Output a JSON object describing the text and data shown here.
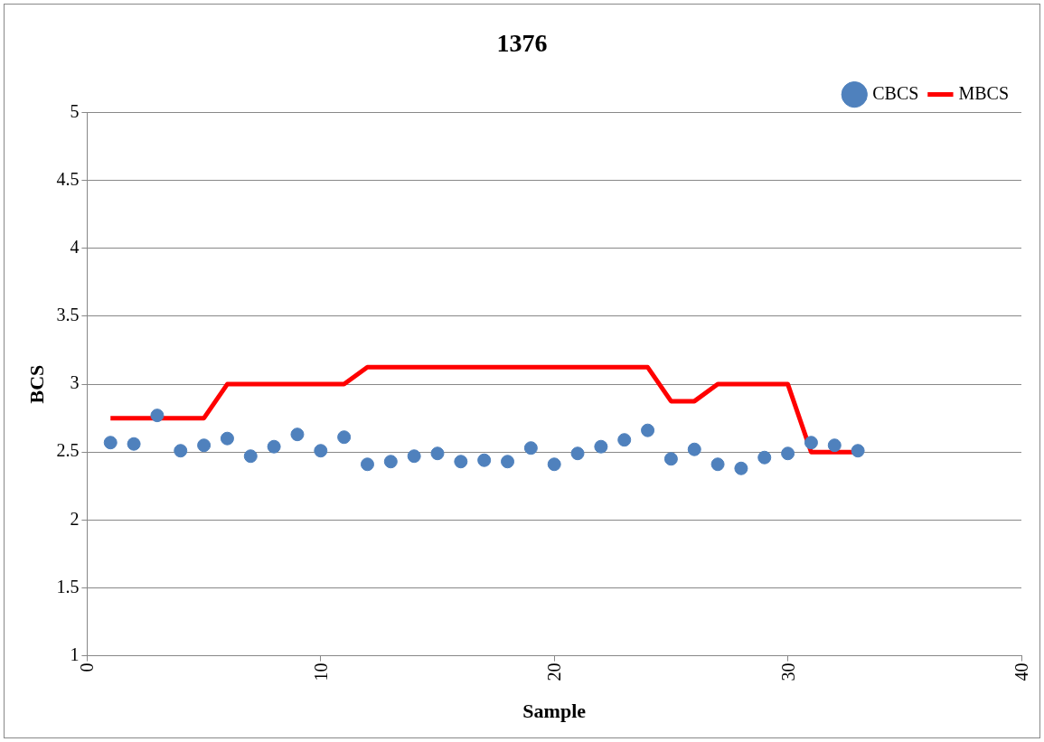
{
  "chart_data": {
    "type": "scatter",
    "title": "1376",
    "xlabel": "Sample",
    "ylabel": "BCS",
    "xlim": [
      0,
      40
    ],
    "xticks": [
      0,
      10,
      20,
      30,
      40
    ],
    "ylim": [
      1,
      5
    ],
    "yticks": [
      1,
      1.5,
      2,
      2.5,
      3,
      3.5,
      4,
      4.5,
      5
    ],
    "grid": "y",
    "legend": "top right",
    "series": [
      {
        "name": "CBCS",
        "type": "scatter",
        "marker": "circle",
        "color": "#4f81bd",
        "x": [
          1,
          2,
          3,
          4,
          5,
          6,
          7,
          8,
          9,
          10,
          11,
          12,
          13,
          14,
          15,
          16,
          17,
          18,
          19,
          20,
          21,
          22,
          23,
          24,
          25,
          26,
          27,
          28,
          29,
          30,
          31,
          32,
          33
        ],
        "values": [
          2.57,
          2.56,
          2.77,
          2.51,
          2.55,
          2.6,
          2.47,
          2.54,
          2.63,
          2.51,
          2.61,
          2.41,
          2.43,
          2.47,
          2.49,
          2.43,
          2.44,
          2.43,
          2.53,
          2.41,
          2.49,
          2.54,
          2.59,
          2.66,
          2.45,
          2.52,
          2.41,
          2.38,
          2.46,
          2.49,
          2.57,
          2.55,
          2.51
        ]
      },
      {
        "name": "MBCS",
        "type": "line",
        "marker": "none",
        "line_style": "solid",
        "color": "#ff0000",
        "x": [
          1,
          2,
          3,
          4,
          5,
          6,
          7,
          8,
          9,
          10,
          11,
          12,
          13,
          14,
          15,
          16,
          17,
          18,
          19,
          20,
          21,
          22,
          23,
          24,
          25,
          26,
          27,
          28,
          29,
          30,
          31,
          32,
          33
        ],
        "values": [
          2.75,
          2.75,
          2.75,
          2.75,
          2.75,
          3,
          3,
          3,
          3,
          3,
          3,
          3.125,
          3.125,
          3.125,
          3.125,
          3.125,
          3.125,
          3.125,
          3.125,
          3.125,
          3.125,
          3.125,
          3.125,
          3.125,
          2.875,
          2.875,
          3,
          3,
          3,
          3,
          2.5,
          2.5,
          2.5
        ]
      }
    ]
  }
}
